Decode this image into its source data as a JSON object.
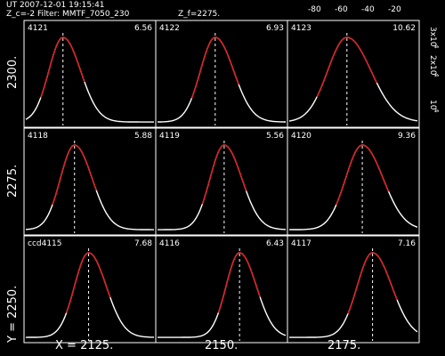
{
  "header": {
    "line1": "UT 2007-12-01 19:15:41",
    "line2": "Z_c=-2  Filter: MMTF_7050_230",
    "line3": "Z_f=2275."
  },
  "top_axis": {
    "ticks": [
      "-80",
      "-60",
      "-40",
      "-20"
    ],
    "tick_values": [
      -80,
      -60,
      -40,
      -20
    ]
  },
  "right_axis": {
    "label_top": "3x10",
    "label_top_exp": "4",
    "label_mid": "2x10",
    "label_mid_exp": "4",
    "label_bot": "10",
    "label_bot_exp": "4"
  },
  "axes": {
    "y_prefix": "Y = ",
    "x_prefix": "X = ",
    "y_ticks": [
      "2300.",
      "2275.",
      "2250."
    ],
    "x_ticks": [
      "2125.",
      "2150.",
      "2175."
    ]
  },
  "colors": {
    "background": "#000000",
    "profile": "#ffffff",
    "fit": "#e41818"
  },
  "chart_data": {
    "type": "line",
    "title": "",
    "grid": "3x3 panels of emission-line profiles",
    "panels": [
      {
        "id": "4121",
        "value": "6.56",
        "row": 0,
        "col": 0,
        "center": 0.29,
        "width": 0.11
      },
      {
        "id": "4122",
        "value": "6.93",
        "row": 0,
        "col": 1,
        "center": 0.45,
        "width": 0.115
      },
      {
        "id": "4123",
        "value": "10.62",
        "row": 0,
        "col": 2,
        "center": 0.45,
        "width": 0.15
      },
      {
        "id": "4118",
        "value": "5.88",
        "row": 1,
        "col": 0,
        "center": 0.38,
        "width": 0.11
      },
      {
        "id": "4119",
        "value": "5.56",
        "row": 1,
        "col": 1,
        "center": 0.52,
        "width": 0.11
      },
      {
        "id": "4120",
        "value": "9.36",
        "row": 1,
        "col": 2,
        "center": 0.57,
        "width": 0.13
      },
      {
        "id": "ccd4115",
        "value": "7.68",
        "row": 2,
        "col": 0,
        "center": 0.49,
        "width": 0.11
      },
      {
        "id": "4116",
        "value": "6.43",
        "row": 2,
        "col": 1,
        "center": 0.64,
        "width": 0.105
      },
      {
        "id": "4117",
        "value": "7.16",
        "row": 2,
        "col": 2,
        "center": 0.65,
        "width": 0.12
      }
    ]
  }
}
